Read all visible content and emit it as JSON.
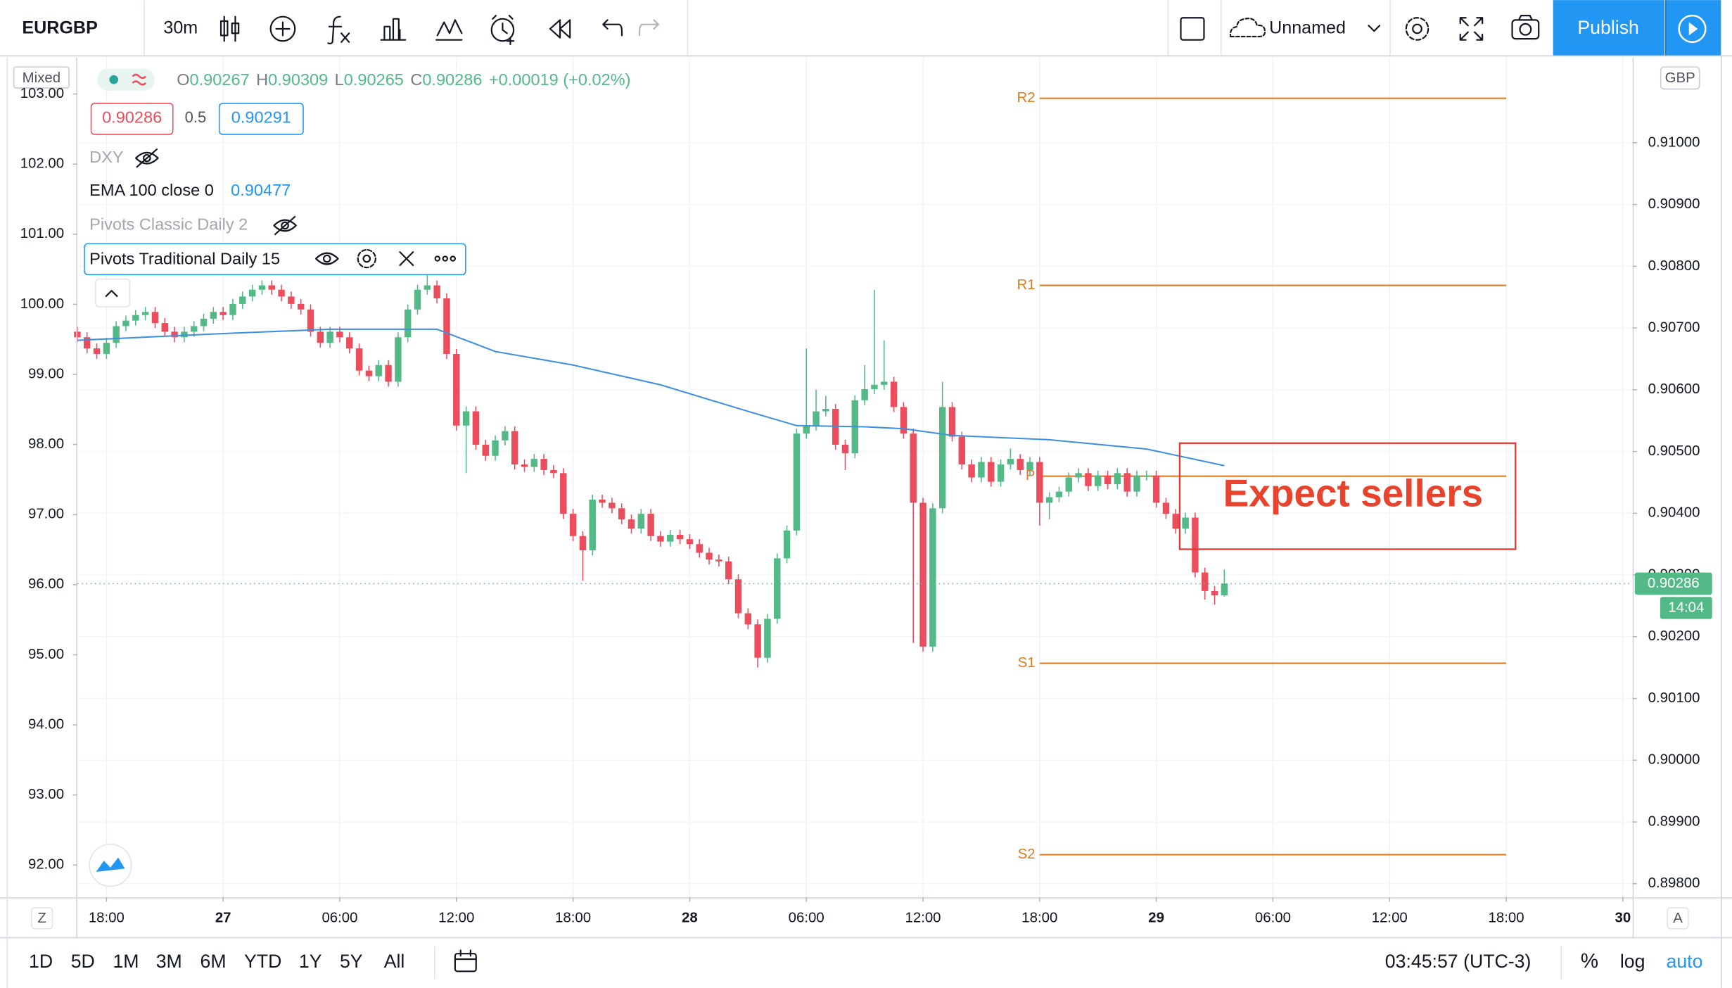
{
  "toolbar": {
    "symbol": "EURGBP",
    "interval": "30m",
    "layout_name": "Unnamed",
    "publish": "Publish"
  },
  "legend": {
    "mode": "Mixed",
    "ohlc": [
      {
        "label": "O",
        "value": "0.90267"
      },
      {
        "label": "H",
        "value": "0.90309"
      },
      {
        "label": "L",
        "value": "0.90265"
      },
      {
        "label": "C",
        "value": "0.90286"
      }
    ],
    "change": "+0.00019 (+0.02%)",
    "bid": "0.90286",
    "spread": "0.5",
    "ask": "0.90291",
    "indicators": {
      "dxy": "DXY",
      "ema": "EMA 100 close 0",
      "pivots_classic": "Pivots Classic Daily 2",
      "pivots_traditional": "Pivots Traditional Daily 15"
    }
  },
  "price_axis": {
    "currency": "GBP",
    "countdown": "14:04"
  },
  "bottom_bar": {
    "z": "Z",
    "a": "A",
    "ranges": [
      "1D",
      "5D",
      "1M",
      "3M",
      "6M",
      "YTD",
      "1Y",
      "5Y",
      "All"
    ],
    "clock": "03:45:57 (UTC-3)",
    "percent": "%",
    "log": "log",
    "auto": "auto"
  },
  "chart_data": {
    "type": "candlestick",
    "annotation": "Expect sellers",
    "up_color": "#53b987",
    "down_color": "#eb4d5c",
    "open": [
      0.90694,
      0.90685,
      0.90667,
      0.90658,
      0.90676,
      0.90703,
      0.90712,
      0.90721,
      0.90726,
      0.90708,
      0.90694,
      0.90685,
      0.90694,
      0.90703,
      0.90715,
      0.90726,
      0.90721,
      0.90739,
      0.90751,
      0.90762,
      0.90769,
      0.90762,
      0.90751,
      0.90739,
      0.9073,
      0.90694,
      0.90676,
      0.90694,
      0.90685,
      0.90667,
      0.90631,
      0.90622,
      0.9064,
      0.90613,
      0.90685,
      0.9073,
      0.90762,
      0.90769,
      0.90748,
      0.90658,
      0.90542,
      0.90565,
      0.90511,
      0.90493,
      0.90518,
      0.90533,
      0.90479,
      0.90475,
      0.90488,
      0.9047,
      0.90465,
      0.90399,
      0.90363,
      0.9034,
      0.90422,
      0.90417,
      0.90408,
      0.9039,
      0.90375,
      0.90399,
      0.90363,
      0.90354,
      0.90365,
      0.90358,
      0.9035,
      0.90336,
      0.90325,
      0.90322,
      0.90293,
      0.90238,
      0.9022,
      0.90166,
      0.90229,
      0.90327,
      0.90372,
      0.90529,
      0.90542,
      0.90565,
      0.90569,
      0.90511,
      0.90497,
      0.90583,
      0.90601,
      0.90608,
      0.90613,
      0.90572,
      0.90529,
      0.90417,
      0.90184,
      0.90408,
      0.90572,
      0.90524,
      0.90479,
      0.90458,
      0.90483,
      0.90451,
      0.90479,
      0.90488,
      0.9047,
      0.90483,
      0.90417,
      0.90426,
      0.90435,
      0.90458,
      0.90465,
      0.90444,
      0.90461,
      0.90447,
      0.90465,
      0.90435,
      0.90461,
      0.90461,
      0.90417,
      0.90399,
      0.90375,
      0.90393,
      0.90304,
      0.90274,
      0.90267
    ],
    "high": [
      0.90702,
      0.90693,
      0.90675,
      0.90684,
      0.90711,
      0.9072,
      0.90729,
      0.90734,
      0.90734,
      0.90716,
      0.90702,
      0.90702,
      0.90711,
      0.90723,
      0.90734,
      0.90734,
      0.90747,
      0.90759,
      0.9077,
      0.90777,
      0.90777,
      0.9077,
      0.90759,
      0.90747,
      0.90738,
      0.90702,
      0.90702,
      0.90702,
      0.90693,
      0.90675,
      0.90639,
      0.90648,
      0.90648,
      0.90693,
      0.90738,
      0.9077,
      0.9079,
      0.90777,
      0.90756,
      0.90666,
      0.90573,
      0.90573,
      0.90519,
      0.90526,
      0.90541,
      0.90541,
      0.90487,
      0.90496,
      0.90496,
      0.90478,
      0.90473,
      0.90407,
      0.90371,
      0.9043,
      0.9043,
      0.90425,
      0.90416,
      0.90398,
      0.90407,
      0.90407,
      0.90371,
      0.90373,
      0.90373,
      0.90366,
      0.90358,
      0.90344,
      0.90333,
      0.9033,
      0.90301,
      0.90246,
      0.90228,
      0.90237,
      0.90335,
      0.9038,
      0.90537,
      0.90667,
      0.906,
      0.9059,
      0.90577,
      0.90519,
      0.90591,
      0.9064,
      0.90762,
      0.9068,
      0.90621,
      0.9058,
      0.90537,
      0.90425,
      0.90416,
      0.90613,
      0.9058,
      0.90532,
      0.90487,
      0.90491,
      0.90491,
      0.90487,
      0.90505,
      0.90496,
      0.90491,
      0.90491,
      0.90434,
      0.90443,
      0.90466,
      0.90473,
      0.90473,
      0.90469,
      0.90469,
      0.90473,
      0.90473,
      0.90469,
      0.90469,
      0.90469,
      0.90425,
      0.90407,
      0.90401,
      0.90401,
      0.90312,
      0.90282,
      0.90309
    ],
    "low": [
      0.90677,
      0.90659,
      0.9065,
      0.9065,
      0.90668,
      0.90695,
      0.90704,
      0.90713,
      0.907,
      0.90686,
      0.90677,
      0.90677,
      0.90686,
      0.90695,
      0.90707,
      0.90713,
      0.90713,
      0.90731,
      0.90743,
      0.90754,
      0.90754,
      0.90743,
      0.90731,
      0.90722,
      0.90686,
      0.90668,
      0.90668,
      0.90677,
      0.90659,
      0.90623,
      0.90614,
      0.90614,
      0.90605,
      0.90605,
      0.90677,
      0.90722,
      0.90754,
      0.9074,
      0.9065,
      0.90534,
      0.90465,
      0.90503,
      0.90485,
      0.90485,
      0.9051,
      0.90471,
      0.90467,
      0.90467,
      0.90462,
      0.90457,
      0.90391,
      0.90355,
      0.90291,
      0.90332,
      0.90409,
      0.904,
      0.90382,
      0.90367,
      0.90367,
      0.90355,
      0.90346,
      0.90346,
      0.9035,
      0.90342,
      0.90328,
      0.90317,
      0.90314,
      0.90285,
      0.9023,
      0.90212,
      0.9015,
      0.90158,
      0.90221,
      0.90319,
      0.90364,
      0.90521,
      0.90534,
      0.90557,
      0.90503,
      0.9047,
      0.90489,
      0.90575,
      0.90593,
      0.906,
      0.90564,
      0.90521,
      0.9019,
      0.90176,
      0.90176,
      0.904,
      0.90516,
      0.90471,
      0.9045,
      0.9045,
      0.90443,
      0.90443,
      0.90471,
      0.90462,
      0.90462,
      0.9038,
      0.9039,
      0.90418,
      0.90427,
      0.9045,
      0.90436,
      0.90436,
      0.90439,
      0.90439,
      0.90427,
      0.90427,
      0.90453,
      0.90409,
      0.90391,
      0.90367,
      0.90367,
      0.90296,
      0.9026,
      0.90252,
      0.90265
    ],
    "close": [
      0.90685,
      0.90667,
      0.90658,
      0.90676,
      0.90703,
      0.90712,
      0.90721,
      0.90726,
      0.90708,
      0.90694,
      0.90685,
      0.90694,
      0.90703,
      0.90715,
      0.90726,
      0.90721,
      0.90739,
      0.90751,
      0.90762,
      0.90769,
      0.90762,
      0.90751,
      0.90739,
      0.9073,
      0.90694,
      0.90676,
      0.90694,
      0.90685,
      0.90667,
      0.90631,
      0.90622,
      0.9064,
      0.90613,
      0.90685,
      0.9073,
      0.90762,
      0.90769,
      0.90748,
      0.90658,
      0.90542,
      0.90565,
      0.90511,
      0.90493,
      0.90518,
      0.90533,
      0.90479,
      0.90475,
      0.90488,
      0.9047,
      0.90465,
      0.90399,
      0.90363,
      0.9034,
      0.90422,
      0.90417,
      0.90408,
      0.9039,
      0.90375,
      0.90399,
      0.90363,
      0.90354,
      0.90365,
      0.90358,
      0.9035,
      0.90336,
      0.90325,
      0.90322,
      0.90293,
      0.90238,
      0.9022,
      0.90166,
      0.90229,
      0.90327,
      0.90372,
      0.90529,
      0.90542,
      0.90565,
      0.90569,
      0.90511,
      0.90497,
      0.90583,
      0.90601,
      0.90608,
      0.90613,
      0.90572,
      0.90529,
      0.90417,
      0.90184,
      0.90408,
      0.90572,
      0.90524,
      0.90479,
      0.90458,
      0.90483,
      0.90451,
      0.90479,
      0.90488,
      0.9047,
      0.90483,
      0.90417,
      0.90426,
      0.90435,
      0.90458,
      0.90465,
      0.90444,
      0.90461,
      0.90447,
      0.90465,
      0.90435,
      0.90461,
      0.90461,
      0.90417,
      0.90399,
      0.90375,
      0.90393,
      0.90304,
      0.90274,
      0.90267,
      0.90286
    ],
    "ema": {
      "color": "#3d8fe0",
      "x": [
        0,
        15,
        26,
        37,
        43,
        51,
        60,
        69,
        74,
        81,
        85,
        90,
        100,
        110,
        118
      ],
      "values": [
        0.9068,
        0.90691,
        0.90698,
        0.90698,
        0.90662,
        0.9064,
        0.90608,
        0.90565,
        0.90542,
        0.9054,
        0.90537,
        0.90526,
        0.90519,
        0.90504,
        0.90477
      ]
    },
    "pivots": {
      "color": "#e07b22",
      "labels": [
        "R2",
        "R1",
        "P",
        "S1",
        "S2"
      ],
      "values": [
        0.91072,
        0.90769,
        0.9046,
        0.90157,
        0.89847
      ]
    },
    "xlim": [
      0,
      160
    ],
    "xticks": [
      {
        "value": 3,
        "label": "18:00"
      },
      {
        "value": 15,
        "label": "27"
      },
      {
        "value": 27,
        "label": "06:00"
      },
      {
        "value": 39,
        "label": "12:00"
      },
      {
        "value": 51,
        "label": "18:00"
      },
      {
        "value": 63,
        "label": "28"
      },
      {
        "value": 75,
        "label": "06:00"
      },
      {
        "value": 87,
        "label": "12:00"
      },
      {
        "value": 99,
        "label": "18:00"
      },
      {
        "value": 111,
        "label": "29"
      },
      {
        "value": 123,
        "label": "06:00"
      },
      {
        "value": 135,
        "label": "12:00"
      },
      {
        "value": 147,
        "label": "18:00"
      },
      {
        "value": 159,
        "label": "30"
      }
    ],
    "ylim": [
      0.89778,
      0.91138
    ],
    "yticks": [
      {
        "value": 0.898,
        "label": "0.89800"
      },
      {
        "value": 0.899,
        "label": "0.89900"
      },
      {
        "value": 0.9,
        "label": "0.90000"
      },
      {
        "value": 0.901,
        "label": "0.90100"
      },
      {
        "value": 0.902,
        "label": "0.90200"
      },
      {
        "value": 0.903,
        "label": "0.90300"
      },
      {
        "value": 0.904,
        "label": "0.90400"
      },
      {
        "value": 0.905,
        "label": "0.90500"
      },
      {
        "value": 0.906,
        "label": "0.90600"
      },
      {
        "value": 0.907,
        "label": "0.90700"
      },
      {
        "value": 0.908,
        "label": "0.90800"
      },
      {
        "value": 0.909,
        "label": "0.90900"
      },
      {
        "value": 0.91,
        "label": "0.91000"
      }
    ],
    "y2lim": [
      91.54,
      103.52
    ],
    "y2ticks": [
      {
        "value": 92,
        "label": "92.00"
      },
      {
        "value": 93,
        "label": "93.00"
      },
      {
        "value": 94,
        "label": "94.00"
      },
      {
        "value": 95,
        "label": "95.00"
      },
      {
        "value": 96,
        "label": "96.00"
      },
      {
        "value": 97,
        "label": "97.00"
      },
      {
        "value": 98,
        "label": "98.00"
      },
      {
        "value": 99,
        "label": "99.00"
      },
      {
        "value": 100,
        "label": "100.00"
      },
      {
        "value": 101,
        "label": "101.00"
      },
      {
        "value": 102,
        "label": "102.00"
      },
      {
        "value": 103,
        "label": "103.00"
      }
    ],
    "grid": true
  }
}
